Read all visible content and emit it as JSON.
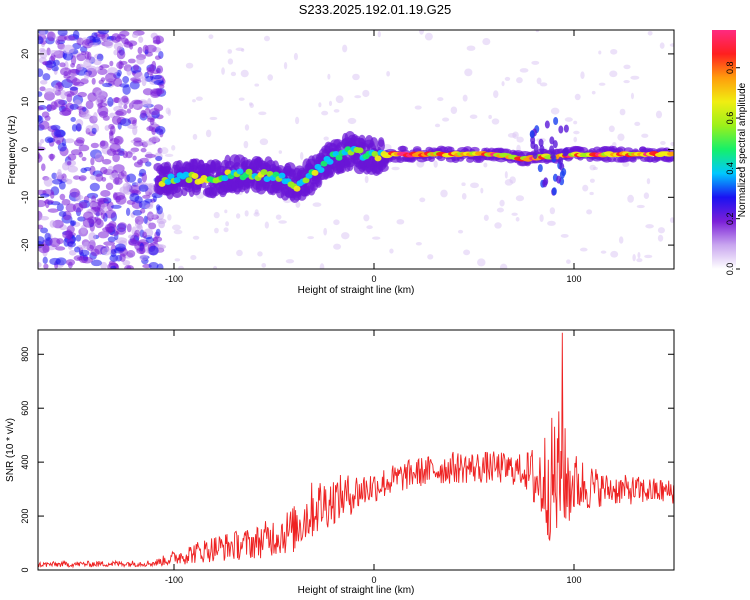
{
  "title": "S233.2025.192.01.19.G25",
  "chart_data": [
    {
      "type": "heatmap",
      "xlabel": "Height of straight line (km)",
      "ylabel": "Frequency (Hz)",
      "xlim": [
        -168,
        150
      ],
      "ylim": [
        -25,
        25
      ],
      "x_ticks": [
        {
          "value": -100,
          "label": "-100"
        },
        {
          "value": 0,
          "label": "0"
        },
        {
          "value": 100,
          "label": "100"
        }
      ],
      "y_ticks": [
        {
          "value": -20,
          "label": "-20"
        },
        {
          "value": -10,
          "label": "-10"
        },
        {
          "value": 0,
          "label": "0"
        },
        {
          "value": 10,
          "label": "10"
        },
        {
          "value": 20,
          "label": "20"
        }
      ],
      "colorbar": {
        "label": "Normalized spectral amplitude",
        "range": [
          0,
          0.95
        ],
        "ticks": [
          {
            "value": 0.0,
            "label": "0.0"
          },
          {
            "value": 0.2,
            "label": "0.2"
          },
          {
            "value": 0.4,
            "label": "0.4"
          },
          {
            "value": 0.6,
            "label": "0.6"
          },
          {
            "value": 0.8,
            "label": "0.8"
          }
        ],
        "colors": [
          "#ffffff",
          "#c9a6ef",
          "#7b1fd8",
          "#1a12f2",
          "#00c8ff",
          "#15f06a",
          "#9cf01a",
          "#f0ee12",
          "#ff9d0c",
          "#ff1f1f",
          "#ff2a80"
        ]
      },
      "ridge": [
        {
          "x": -108,
          "f": -6.5
        },
        {
          "x": -95,
          "f": -6
        },
        {
          "x": -80,
          "f": -6
        },
        {
          "x": -65,
          "f": -5
        },
        {
          "x": -50,
          "f": -5.5
        },
        {
          "x": -38,
          "f": -7.5
        },
        {
          "x": -30,
          "f": -5
        },
        {
          "x": -22,
          "f": -2
        },
        {
          "x": -12,
          "f": -0.5
        },
        {
          "x": 0,
          "f": -1.5
        },
        {
          "x": 10,
          "f": -1
        },
        {
          "x": 30,
          "f": -1
        },
        {
          "x": 60,
          "f": -1
        },
        {
          "x": 75,
          "f": -2
        },
        {
          "x": 85,
          "f": -1.5
        },
        {
          "x": 92,
          "f": -1.5
        },
        {
          "x": 100,
          "f": -1
        },
        {
          "x": 120,
          "f": -1
        },
        {
          "x": 150,
          "f": -1
        }
      ]
    },
    {
      "type": "line",
      "xlabel": "Height of straight line (km)",
      "ylabel": "SNR (10 * v/v)",
      "xlim": [
        -168,
        150
      ],
      "ylim": [
        0,
        890
      ],
      "color": "#ee2222",
      "x_ticks": [
        {
          "value": -100,
          "label": "-100"
        },
        {
          "value": 0,
          "label": "0"
        },
        {
          "value": 100,
          "label": "100"
        }
      ],
      "y_ticks": [
        {
          "value": 0,
          "label": "0"
        },
        {
          "value": 200,
          "label": "200"
        },
        {
          "value": 400,
          "label": "400"
        },
        {
          "value": 600,
          "label": "600"
        },
        {
          "value": 800,
          "label": "800"
        }
      ],
      "envelope": [
        {
          "x": -168,
          "mean": 20,
          "amp": 10
        },
        {
          "x": -110,
          "mean": 25,
          "amp": 12
        },
        {
          "x": -95,
          "mean": 55,
          "amp": 35
        },
        {
          "x": -80,
          "mean": 80,
          "amp": 50
        },
        {
          "x": -60,
          "mean": 100,
          "amp": 60
        },
        {
          "x": -40,
          "mean": 150,
          "amp": 90
        },
        {
          "x": -30,
          "mean": 230,
          "amp": 110
        },
        {
          "x": -20,
          "mean": 260,
          "amp": 90
        },
        {
          "x": 0,
          "mean": 310,
          "amp": 60
        },
        {
          "x": 20,
          "mean": 360,
          "amp": 55
        },
        {
          "x": 40,
          "mean": 380,
          "amp": 60
        },
        {
          "x": 60,
          "mean": 380,
          "amp": 60
        },
        {
          "x": 75,
          "mean": 370,
          "amp": 60
        },
        {
          "x": 82,
          "mean": 330,
          "amp": 150
        },
        {
          "x": 92,
          "mean": 330,
          "amp": 280
        },
        {
          "x": 100,
          "mean": 320,
          "amp": 120
        },
        {
          "x": 115,
          "mean": 300,
          "amp": 60
        },
        {
          "x": 150,
          "mean": 290,
          "amp": 45
        }
      ],
      "peak": {
        "x": 94,
        "y": 880
      }
    }
  ]
}
